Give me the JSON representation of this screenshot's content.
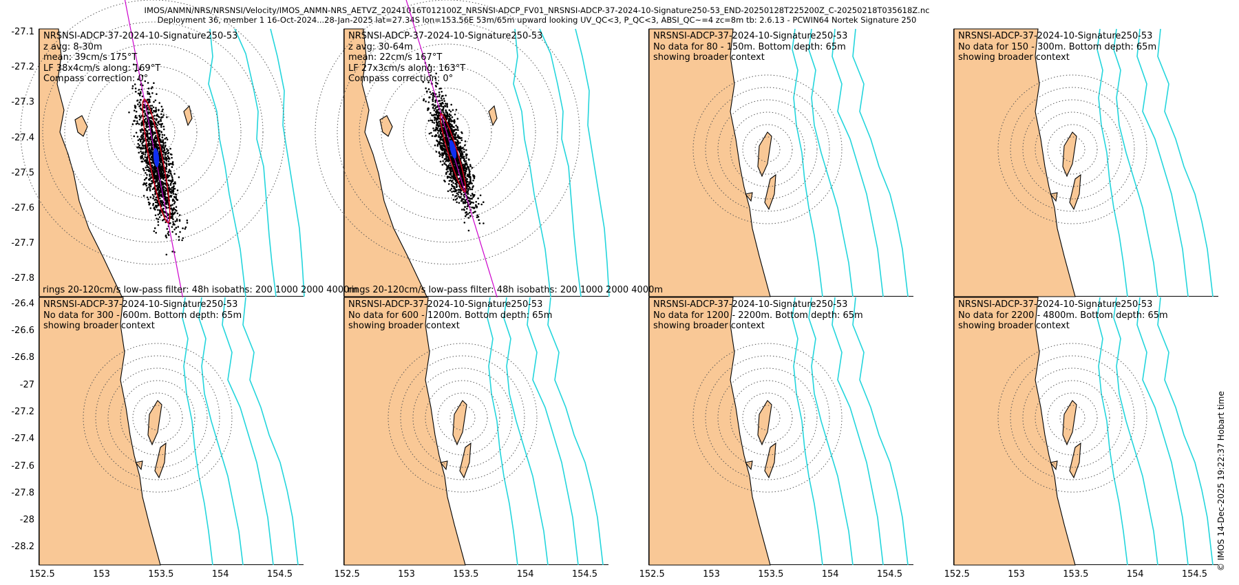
{
  "header": {
    "line1": "IMOS/ANMN/NRS/NRSNSI/Velocity/IMOS_ANMN-NRS_AETVZ_20241016T012100Z_NRSNSI-ADCP_FV01_NRSNSI-ADCP-37-2024-10-Signature250-53_END-20250128T225200Z_C-20250218T035618Z.nc",
    "line2": "Deployment 36, member 1 16-Oct-2024...28-Jan-2025 lat=27.34S lon=153.56E 53m/65m upward looking UV_QC<3, P_QC<3, ABSI_QC~=4 zc=8m tb: 2.6.13 - PCWIN64 Nortek Signature 250"
  },
  "credit": "© IMOS 14-Dec-2025 19:22:37 Hobart time",
  "colors": {
    "land": "#f9c896",
    "isobath": "#23d5dc",
    "scatter": "#000000",
    "ellipse": "#d0001a",
    "mean": "#1030f0",
    "axis": "#cc00cc"
  },
  "panels": [
    {
      "name": "NRSNSI-ADCP-37-2024-10-Signature250-53",
      "lines": [
        "z avg: 8-30m",
        "mean: 39cm/s 175°T",
        "LF 38x4cm/s along: 169°T",
        "Compass correction: 0°"
      ],
      "footer": "rings 20-120cm/s low-pass filter: 48h isobaths: 200 1000 2000 4000m"
    },
    {
      "name": "NRSNSI-ADCP-37-2024-10-Signature250-53",
      "lines": [
        "z avg: 30-64m",
        "mean: 22cm/s 167°T",
        "LF 27x3cm/s along: 163°T",
        "Compass correction: 0°"
      ],
      "footer": "rings 20-120cm/s low-pass filter: 48h isobaths: 200 1000 2000 4000m"
    },
    {
      "name": "NRSNSI-ADCP-37-2024-10-Signature250-53",
      "lines": [
        "No data for 80 - 150m. Bottom depth: 65m",
        "showing broader context"
      ],
      "footer": ""
    },
    {
      "name": "NRSNSI-ADCP-37-2024-10-Signature250-53",
      "lines": [
        "No data for 150 - 300m. Bottom depth: 65m",
        "showing broader context"
      ],
      "footer": ""
    },
    {
      "name": "NRSNSI-ADCP-37-2024-10-Signature250-53",
      "lines": [
        "No data for 300 - 600m. Bottom depth: 65m",
        "showing broader context"
      ],
      "footer": ""
    },
    {
      "name": "NRSNSI-ADCP-37-2024-10-Signature250-53",
      "lines": [
        "No data for 600 - 1200m. Bottom depth: 65m",
        "showing broader context"
      ],
      "footer": ""
    },
    {
      "name": "NRSNSI-ADCP-37-2024-10-Signature250-53",
      "lines": [
        "No data for 1200 - 2200m. Bottom depth: 65m",
        "showing broader context"
      ],
      "footer": ""
    },
    {
      "name": "NRSNSI-ADCP-37-2024-10-Signature250-53",
      "lines": [
        "No data for 2200 - 4800m. Bottom depth: 65m",
        "showing broader context"
      ],
      "footer": ""
    }
  ],
  "chart_data": [
    {
      "type": "scatter",
      "panel": 1,
      "title": "NRSNSI-ADCP-37-2024-10-Signature250-53",
      "z_avg_m": [
        8,
        30
      ],
      "mean_speed_cms": 39,
      "mean_dir_degT": 175,
      "lf_major_cms": 38,
      "lf_minor_cms": 4,
      "lf_along_degT": 169,
      "compass_correction_deg": 0,
      "ring_range_cms": [
        20,
        120
      ],
      "lowpass_h": 48,
      "isobaths_m": [
        200,
        1000,
        2000,
        4000
      ],
      "ylim": [
        -27.85,
        -27.09
      ],
      "yticks": [
        "-27.1",
        "-27.2",
        "-27.3",
        "-27.4",
        "-27.5",
        "-27.6",
        "-27.7",
        "-27.8"
      ]
    },
    {
      "type": "scatter",
      "panel": 2,
      "title": "NRSNSI-ADCP-37-2024-10-Signature250-53",
      "z_avg_m": [
        30,
        64
      ],
      "mean_speed_cms": 22,
      "mean_dir_degT": 167,
      "lf_major_cms": 27,
      "lf_minor_cms": 3,
      "lf_along_degT": 163,
      "compass_correction_deg": 0,
      "ring_range_cms": [
        20,
        120
      ],
      "lowpass_h": 48,
      "isobaths_m": [
        200,
        1000,
        2000,
        4000
      ]
    },
    {
      "type": "map",
      "panel": 3,
      "no_data_m": [
        80,
        150
      ],
      "bottom_depth_m": 65
    },
    {
      "type": "map",
      "panel": 4,
      "no_data_m": [
        150,
        300
      ],
      "bottom_depth_m": 65
    },
    {
      "type": "map",
      "panel": 5,
      "no_data_m": [
        300,
        600
      ],
      "bottom_depth_m": 65,
      "ylim": [
        -28.33,
        -26.35
      ],
      "yticks": [
        "-26.4",
        "-26.6",
        "-26.8",
        "-27",
        "-27.2",
        "-27.4",
        "-27.6",
        "-27.8",
        "-28",
        "-28.2"
      ]
    },
    {
      "type": "map",
      "panel": 6,
      "no_data_m": [
        600,
        1200
      ],
      "bottom_depth_m": 65
    },
    {
      "type": "map",
      "panel": 7,
      "no_data_m": [
        1200,
        2200
      ],
      "bottom_depth_m": 65
    },
    {
      "type": "map",
      "panel": 8,
      "no_data_m": [
        2200,
        4800
      ],
      "bottom_depth_m": 65,
      "xlim": [
        152.47,
        154.7
      ],
      "xticks": [
        "152.5",
        "153",
        "153.5",
        "154",
        "154.5"
      ]
    }
  ]
}
